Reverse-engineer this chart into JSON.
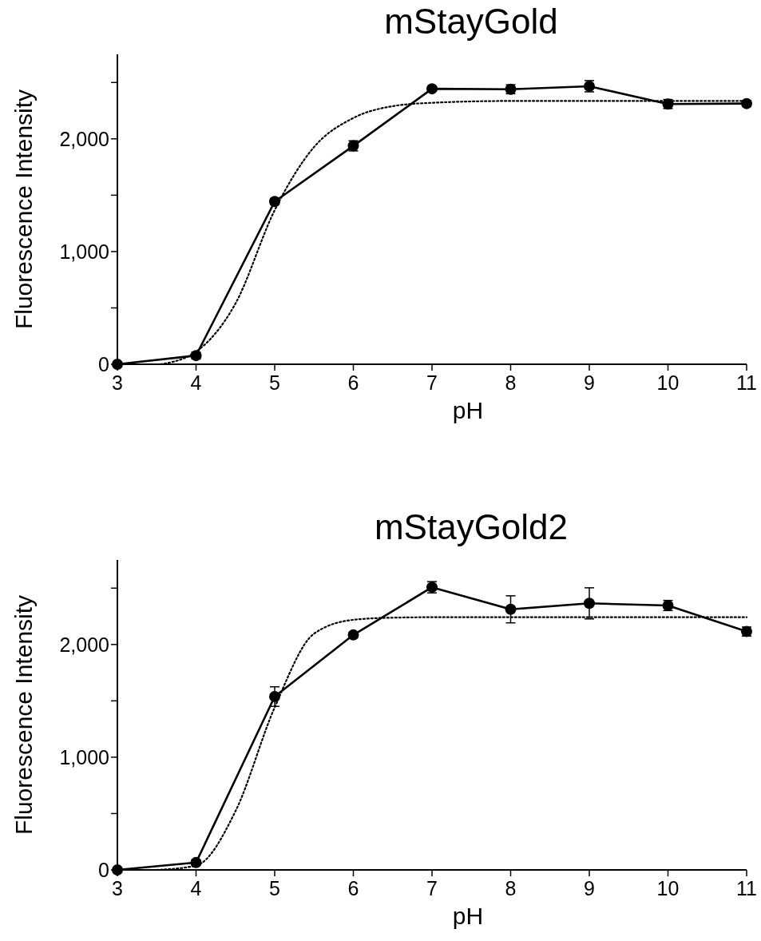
{
  "chart_data": [
    {
      "type": "line",
      "title": "mStayGold",
      "xlabel": "pH",
      "ylabel": "Fluorescence Intensity",
      "x": [
        3,
        4,
        5,
        6,
        7,
        8,
        9,
        10,
        11
      ],
      "xlim": [
        3,
        11
      ],
      "xticks": [
        3,
        4,
        5,
        6,
        7,
        8,
        9,
        10,
        11
      ],
      "ylim": [
        0,
        2750
      ],
      "yticks": [
        {
          "value": 0,
          "label": "0"
        },
        {
          "value": 500,
          "label": null
        },
        {
          "value": 1000,
          "label": "1,000"
        },
        {
          "value": 1500,
          "label": null
        },
        {
          "value": 2000,
          "label": "2,000"
        },
        {
          "value": 2500,
          "label": null
        }
      ],
      "grid": false,
      "series": [
        {
          "color": "#000000",
          "marker": "circle",
          "line_style": "solid",
          "values": [
            0,
            77,
            1444,
            1938,
            2444,
            2440,
            2467,
            2309,
            2313
          ],
          "errors": [
            null,
            30,
            25,
            45,
            20,
            40,
            50,
            40,
            25
          ]
        },
        {
          "type": "line",
          "color": "#000000",
          "marker": "none",
          "line_style": "dotted",
          "x": [
            3.55,
            4,
            4.5,
            5,
            5.5,
            6,
            6.5,
            7,
            8,
            9,
            10,
            11
          ],
          "values": [
            0,
            112,
            537,
            1367,
            1927,
            2185,
            2290,
            2320,
            2336,
            2336,
            2336,
            2336
          ]
        }
      ]
    },
    {
      "type": "line",
      "title": "mStayGold2",
      "xlabel": "pH",
      "ylabel": "Fluorescence Intensity",
      "x": [
        3,
        4,
        5,
        6,
        7,
        8,
        9,
        10,
        11
      ],
      "xlim": [
        3,
        11
      ],
      "xticks": [
        3,
        4,
        5,
        6,
        7,
        8,
        9,
        10,
        11
      ],
      "ylim": [
        0,
        2750
      ],
      "yticks": [
        {
          "value": 0,
          "label": "0"
        },
        {
          "value": 500,
          "label": null
        },
        {
          "value": 1000,
          "label": "1,000"
        },
        {
          "value": 1500,
          "label": null
        },
        {
          "value": 2000,
          "label": "2,000"
        },
        {
          "value": 2500,
          "label": null
        }
      ],
      "grid": false,
      "series": [
        {
          "color": "#000000",
          "marker": "circle",
          "line_style": "solid",
          "values": [
            0,
            65,
            1538,
            2085,
            2508,
            2312,
            2365,
            2346,
            2115
          ],
          "errors": [
            null,
            25,
            87,
            25,
            50,
            120,
            138,
            45,
            40
          ]
        },
        {
          "type": "line",
          "color": "#000000",
          "marker": "none",
          "line_style": "dotted",
          "x": [
            3.5,
            4,
            4.5,
            5,
            5.5,
            6,
            6.5,
            7,
            8,
            9,
            10,
            11
          ],
          "values": [
            0,
            38,
            519,
            1442,
            2096,
            2219,
            2238,
            2242,
            2242,
            2242,
            2242,
            2242
          ]
        }
      ]
    }
  ]
}
